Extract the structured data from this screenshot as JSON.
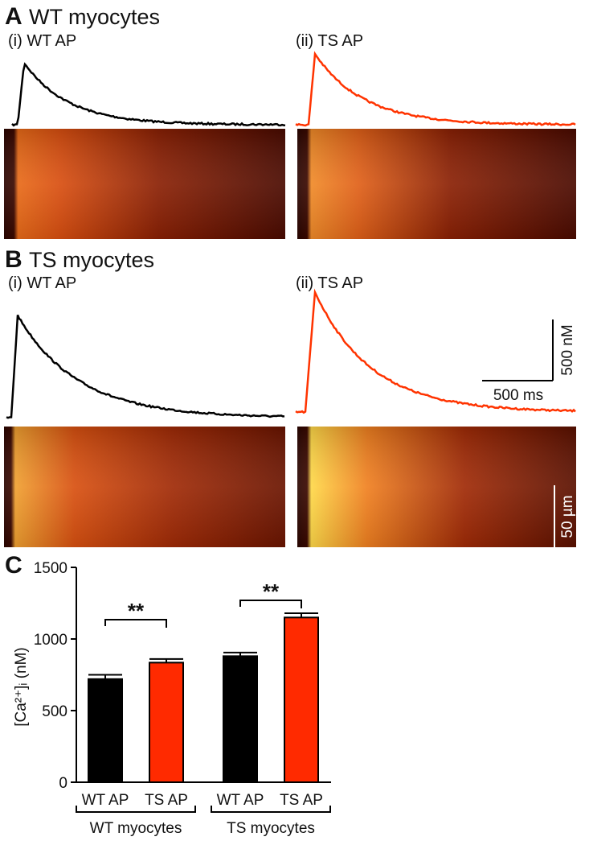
{
  "panels": {
    "A": {
      "label": "A",
      "title": "WT myocytes",
      "left": "(i) WT AP",
      "right": "(ii) TS AP"
    },
    "B": {
      "label": "B",
      "title": "TS myocytes",
      "left": "(i) WT AP",
      "right": "(ii) TS AP"
    }
  },
  "scale_bars": {
    "concentration": "500 nM",
    "time": "500 ms",
    "distance": "50 µm"
  },
  "chart_data": {
    "type": "bar",
    "panel_label": "C",
    "y_label": "[Ca²⁺]ᵢ (nM)",
    "categories": [
      "WT AP",
      "TS AP",
      "WT AP",
      "TS AP"
    ],
    "groups": [
      "WT myocytes",
      "TS myocytes"
    ],
    "values": [
      720,
      835,
      880,
      1150
    ],
    "errors": [
      30,
      25,
      25,
      30
    ],
    "colors": [
      "#000000",
      "#ff2a00",
      "#000000",
      "#ff2a00"
    ],
    "ylim": [
      0,
      1500
    ],
    "yticks": [
      0,
      500,
      1000,
      1500
    ],
    "annotations": [
      "**",
      "**"
    ]
  }
}
